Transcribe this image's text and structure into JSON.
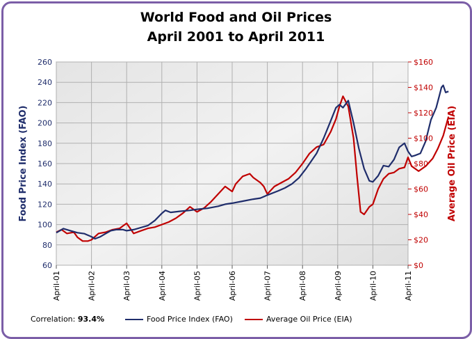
{
  "chart_data": {
    "type": "line",
    "title": "World Food and Oil Prices",
    "subtitle": "April 2001 to April 2011",
    "ylabel": "Food Price Index (FAO)",
    "y2label": "Average Oil Price (EIA)",
    "ylim": [
      60,
      260
    ],
    "y2lim": [
      0,
      160
    ],
    "yticks": [
      "60",
      "80",
      "100",
      "120",
      "140",
      "160",
      "180",
      "200",
      "220",
      "240",
      "260"
    ],
    "y2ticks": [
      "$0",
      "$20",
      "$40",
      "$60",
      "$80",
      "$100",
      "$120",
      "$140",
      "$160"
    ],
    "xticks": [
      "April-01",
      "April-02",
      "April-03",
      "April-04",
      "April-05",
      "April-06",
      "April-07",
      "April-08",
      "April-09",
      "April-10",
      "April-11"
    ],
    "x_start_year": 2001,
    "series": [
      {
        "name": "Food Price Index (FAO)",
        "color": "#1f2d6b",
        "axis": "left",
        "points": [
          [
            0,
            92
          ],
          [
            0.1,
            94
          ],
          [
            0.2,
            96
          ],
          [
            0.4,
            94
          ],
          [
            0.6,
            92
          ],
          [
            0.8,
            91
          ],
          [
            1.0,
            88
          ],
          [
            1.1,
            86
          ],
          [
            1.25,
            88
          ],
          [
            1.4,
            91
          ],
          [
            1.55,
            94
          ],
          [
            1.7,
            95
          ],
          [
            1.9,
            95
          ],
          [
            2.0,
            94
          ],
          [
            2.2,
            95
          ],
          [
            2.4,
            97
          ],
          [
            2.6,
            99
          ],
          [
            2.8,
            104
          ],
          [
            3.0,
            111
          ],
          [
            3.1,
            114
          ],
          [
            3.25,
            112
          ],
          [
            3.5,
            113
          ],
          [
            3.8,
            114
          ],
          [
            4.0,
            115
          ],
          [
            4.3,
            116
          ],
          [
            4.6,
            118
          ],
          [
            4.8,
            120
          ],
          [
            5.0,
            121
          ],
          [
            5.3,
            123
          ],
          [
            5.6,
            125
          ],
          [
            5.8,
            126
          ],
          [
            6.0,
            129
          ],
          [
            6.3,
            133
          ],
          [
            6.5,
            136
          ],
          [
            6.7,
            140
          ],
          [
            6.9,
            146
          ],
          [
            7.1,
            155
          ],
          [
            7.4,
            170
          ],
          [
            7.6,
            185
          ],
          [
            7.8,
            202
          ],
          [
            7.95,
            215
          ],
          [
            8.05,
            218
          ],
          [
            8.15,
            215
          ],
          [
            8.3,
            222
          ],
          [
            8.45,
            200
          ],
          [
            8.6,
            175
          ],
          [
            8.75,
            155
          ],
          [
            8.9,
            143
          ],
          [
            9.0,
            142
          ],
          [
            9.15,
            148
          ],
          [
            9.3,
            158
          ],
          [
            9.45,
            157
          ],
          [
            9.6,
            164
          ],
          [
            9.75,
            176
          ],
          [
            9.9,
            180
          ],
          [
            10.0,
            172
          ],
          [
            10.1,
            167
          ],
          [
            10.2,
            168
          ],
          [
            10.35,
            170
          ],
          [
            10.5,
            182
          ],
          [
            10.65,
            203
          ],
          [
            10.8,
            215
          ],
          [
            10.9,
            228
          ],
          [
            10.95,
            235
          ],
          [
            11.0,
            237
          ],
          [
            11.07,
            230
          ],
          [
            11.15,
            231
          ]
        ]
      },
      {
        "name": "Average Oil Price (EIA)",
        "color": "#c00000",
        "axis": "right",
        "points": [
          [
            0,
            26
          ],
          [
            0.15,
            28
          ],
          [
            0.3,
            25
          ],
          [
            0.5,
            26
          ],
          [
            0.6,
            22
          ],
          [
            0.75,
            19
          ],
          [
            0.9,
            19
          ],
          [
            1.0,
            20
          ],
          [
            1.2,
            25
          ],
          [
            1.4,
            26
          ],
          [
            1.6,
            28
          ],
          [
            1.8,
            29
          ],
          [
            1.9,
            31
          ],
          [
            2.0,
            33
          ],
          [
            2.1,
            29
          ],
          [
            2.2,
            25
          ],
          [
            2.4,
            27
          ],
          [
            2.6,
            29
          ],
          [
            2.8,
            30
          ],
          [
            3.0,
            32
          ],
          [
            3.2,
            34
          ],
          [
            3.4,
            37
          ],
          [
            3.6,
            41
          ],
          [
            3.8,
            46
          ],
          [
            3.9,
            44
          ],
          [
            4.0,
            42
          ],
          [
            4.2,
            45
          ],
          [
            4.4,
            50
          ],
          [
            4.6,
            56
          ],
          [
            4.8,
            62
          ],
          [
            4.9,
            60
          ],
          [
            5.0,
            58
          ],
          [
            5.1,
            64
          ],
          [
            5.3,
            70
          ],
          [
            5.5,
            72
          ],
          [
            5.6,
            69
          ],
          [
            5.8,
            65
          ],
          [
            5.9,
            62
          ],
          [
            6.0,
            56
          ],
          [
            6.2,
            62
          ],
          [
            6.4,
            65
          ],
          [
            6.6,
            68
          ],
          [
            6.8,
            73
          ],
          [
            7.0,
            80
          ],
          [
            7.2,
            88
          ],
          [
            7.4,
            93
          ],
          [
            7.6,
            95
          ],
          [
            7.8,
            105
          ],
          [
            7.95,
            115
          ],
          [
            8.05,
            125
          ],
          [
            8.15,
            133
          ],
          [
            8.3,
            125
          ],
          [
            8.45,
            100
          ],
          [
            8.55,
            70
          ],
          [
            8.65,
            42
          ],
          [
            8.75,
            40
          ],
          [
            8.9,
            46
          ],
          [
            9.0,
            48
          ],
          [
            9.15,
            60
          ],
          [
            9.3,
            68
          ],
          [
            9.45,
            72
          ],
          [
            9.6,
            73
          ],
          [
            9.75,
            76
          ],
          [
            9.9,
            77
          ],
          [
            10.0,
            85
          ],
          [
            10.1,
            78
          ],
          [
            10.3,
            74
          ],
          [
            10.5,
            78
          ],
          [
            10.7,
            84
          ],
          [
            10.85,
            92
          ],
          [
            11.0,
            102
          ],
          [
            11.1,
            112
          ],
          [
            11.15,
            117
          ]
        ]
      }
    ],
    "annotation_label": "Correlation: ",
    "annotation_value": "93.4%",
    "legend_position": "bottom"
  }
}
